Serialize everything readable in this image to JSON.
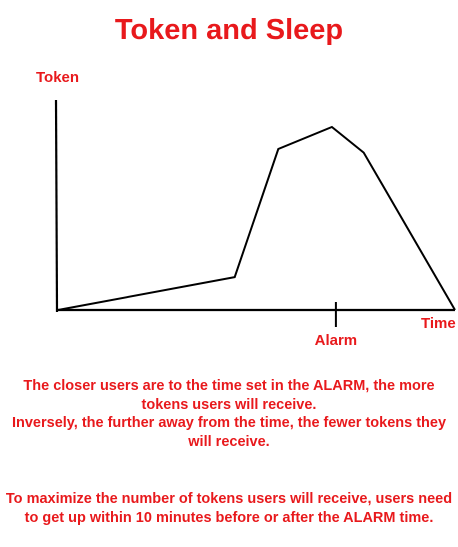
{
  "title": "Token and Sleep",
  "axes": {
    "y_label": "Token",
    "x_label": "Time",
    "marker_label": "Alarm"
  },
  "curve": {
    "points": [
      {
        "t": 0.0,
        "token": 0.0
      },
      {
        "t": 0.445,
        "token": 0.18
      },
      {
        "t": 0.555,
        "token": 0.88
      },
      {
        "t": 0.69,
        "token": 1.0
      },
      {
        "t": 0.77,
        "token": 0.86
      },
      {
        "t": 1.0,
        "token": 0.0
      }
    ],
    "alarm_t": 0.7
  },
  "explanation": [
    "The closer users are to the time set in the ALARM, the more",
    "tokens users will receive.",
    "Inversely, the further away from the time, the fewer tokens they",
    "will receive."
  ],
  "tip": [
    "To maximize the number of tokens users will receive, users need",
    "to get up within 10 minutes before or after the ALARM time."
  ],
  "colors": {
    "accent": "#e8191c",
    "line": "#000000"
  }
}
